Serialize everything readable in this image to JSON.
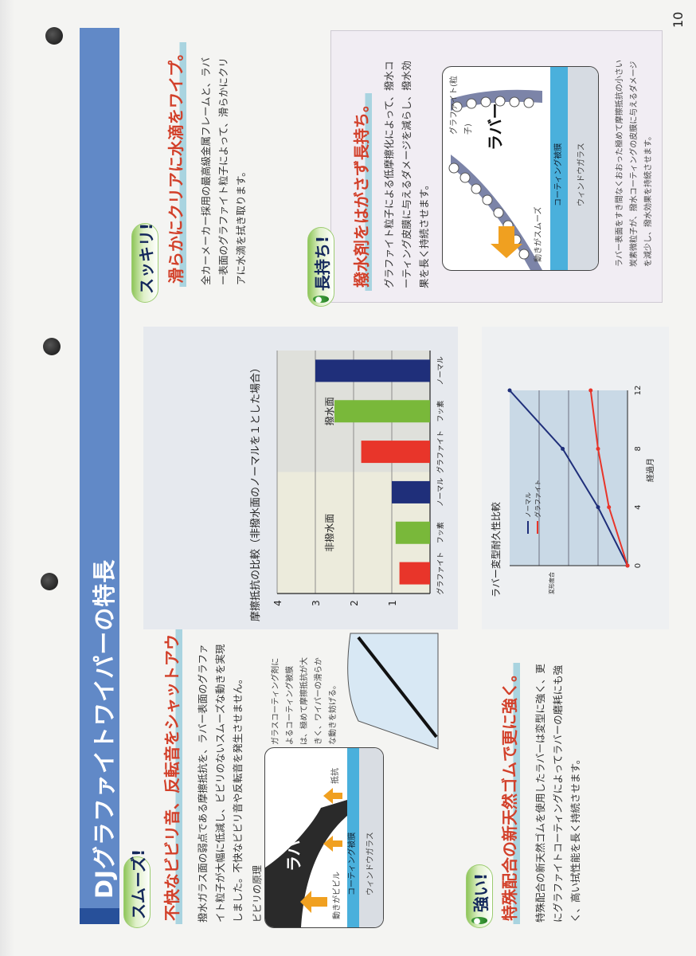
{
  "page_number": "10",
  "title": "DJグラファイトワイパーの特長",
  "smooth": {
    "badge": "スムーズ!",
    "heading": "不快なビビリ音、反転音をシャットアウト。",
    "body": "撥水ガラス面の弱点である摩擦抵抗を、ラバー表面のグラファイト粒子が大幅に低減し、ビビリのないスムーズな動きを実現しました。不快なビビリ音や反転音を発生させません。",
    "diagram_label": "ビビリの原理",
    "diagram": {
      "rubber": "ラバー",
      "resistance": "抵抗",
      "motion": "動きがビビル",
      "coating": "コーティング被膜",
      "glass": "ウィンドウガラス"
    },
    "callout": "ガラスコーティング剤によるコーティング被膜は、極めて摩擦抵抗が大きく、ワイパーの滑らかな動きを妨げる。"
  },
  "clear": {
    "badge": "スッキリ!",
    "heading": "滑らかにクリアに水滴をワイプ。",
    "body": "全カーメーカー採用の最高級金属フレームと、ラバー表面のグラファイト粒子によって、滑らかにクリアに水滴を拭き取ります。"
  },
  "lasting": {
    "badge": "長持ち!",
    "heading": "撥水剤をはがさず長持ち。",
    "body": "グラファイト粒子による低摩擦化によって、撥水コーティング皮膜に与えるダメージを減らし、撥水効果を長く持続させます。",
    "diagram": {
      "particle": "グラファイト(粒子)",
      "rubber": "ラバー",
      "motion": "動きがスムーズ",
      "coating": "コーティング被膜",
      "glass": "ウィンドウガラス"
    },
    "caption": "ラバー表面をすき間なくおおった極めて摩擦抵抗の小さい炭素微粒子が、撥水コーティングの皮膜に与えるダメージを減少し、撥水効果を持続させます。"
  },
  "strong": {
    "badge": "強い!",
    "heading": "特殊配合の新天然ゴムで更に強く。",
    "body": "特殊配合の新天然ゴムを使用したラバーは変型に強く、更にグラファイトコーティングによってラバーの磨耗にも強く、高い拭性能を長く持続させます。"
  },
  "colors": {
    "accent_blue": "#6189c7",
    "heading_red": "#d2402a",
    "graphite": "#e8352a",
    "fluorine": "#79b83a",
    "normal": "#1f2f7a"
  },
  "chart_data": [
    {
      "type": "bar",
      "title": "摩擦抵抗の比較（非撥水面のノーマルを１とした場合）",
      "categories": [
        "グラファイト",
        "フッ素",
        "ノーマル",
        "グラファイト",
        "フッ素",
        "ノーマル"
      ],
      "groups": [
        {
          "label": "非撥水面",
          "categories": [
            0,
            1,
            2
          ]
        },
        {
          "label": "撥水面",
          "categories": [
            3,
            4,
            5
          ]
        }
      ],
      "values": [
        0.8,
        0.9,
        1.0,
        1.8,
        2.5,
        3.0
      ],
      "bar_colors": [
        "#e8352a",
        "#79b83a",
        "#1f2f7a",
        "#e8352a",
        "#79b83a",
        "#1f2f7a"
      ],
      "yticks": [
        "1",
        "2",
        "3",
        "4"
      ],
      "ylim": [
        0,
        4
      ],
      "grid": true
    },
    {
      "type": "line",
      "title": "ラバー変型耐久性比較",
      "xlabel": "経過月",
      "ylabel": "変形度合",
      "x": [
        0,
        4,
        8,
        12
      ],
      "xticks": [
        "0",
        "4",
        "8",
        "12"
      ],
      "series": [
        {
          "name": "ノーマル",
          "color": "#1f2f7a",
          "values": [
            0,
            1.0,
            2.2,
            4.0
          ]
        },
        {
          "name": "グラファイト",
          "color": "#e8352a",
          "values": [
            0,
            0.63,
            1.0,
            1.25
          ]
        }
      ],
      "ylim": [
        0,
        4
      ],
      "grid": true,
      "legend": "top-left"
    }
  ]
}
